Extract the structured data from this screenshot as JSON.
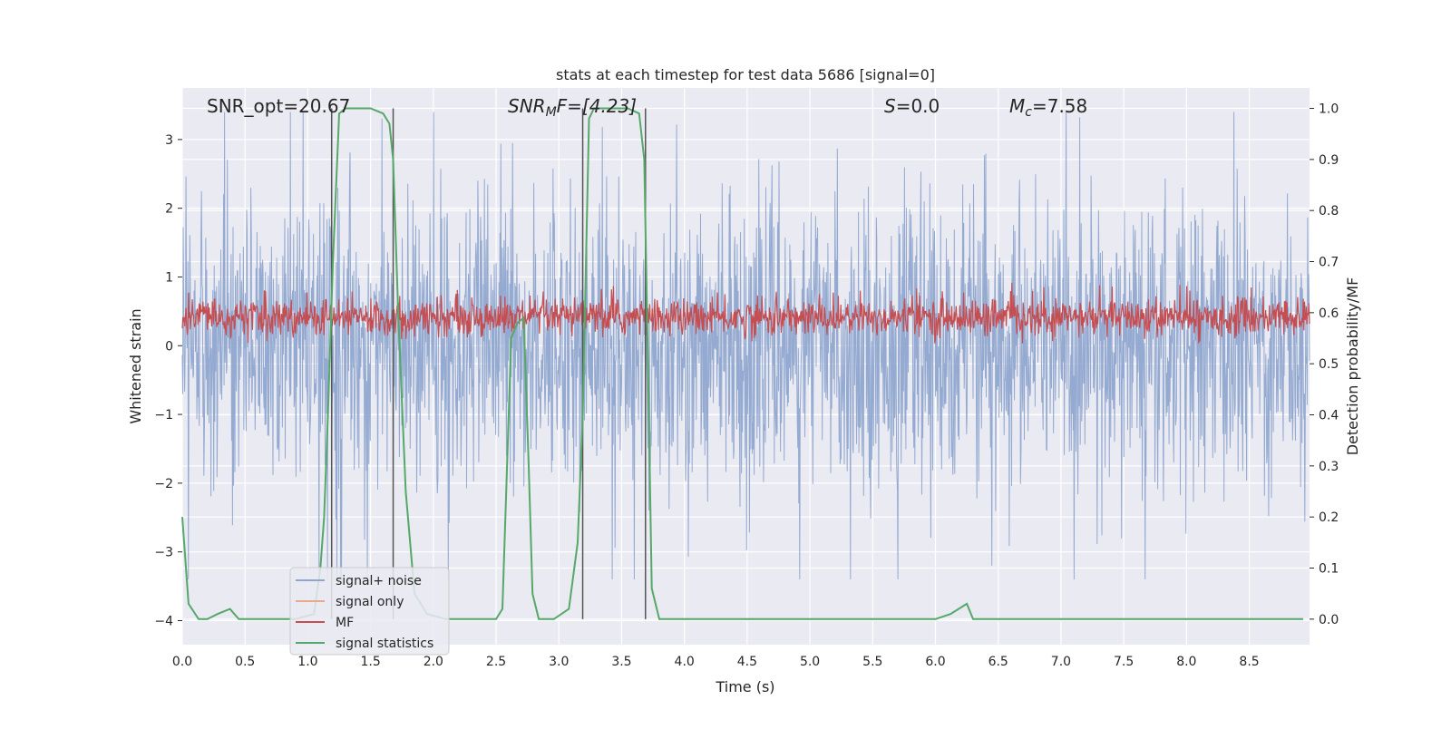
{
  "chart_data": {
    "type": "line",
    "title": "stats at each timestep for test data 5686 [signal=0]",
    "xlabel": "Time (s)",
    "ylabel": "Whitened strain",
    "ylabel_right": "Detection probability/MF",
    "xlim": [
      0.0,
      8.98
    ],
    "ylim": [
      -4.35,
      3.75
    ],
    "ylim_right": [
      -0.05,
      1.04
    ],
    "x_ticks": [
      "0.0",
      "0.5",
      "1.0",
      "1.5",
      "2.0",
      "2.5",
      "3.0",
      "3.5",
      "4.0",
      "4.5",
      "5.0",
      "5.5",
      "6.0",
      "6.5",
      "7.0",
      "7.5",
      "8.0",
      "8.5"
    ],
    "x_tick_values": [
      0.0,
      0.5,
      1.0,
      1.5,
      2.0,
      2.5,
      3.0,
      3.5,
      4.0,
      4.5,
      5.0,
      5.5,
      6.0,
      6.5,
      7.0,
      7.5,
      8.0,
      8.5
    ],
    "y_ticks": [
      "3",
      "2",
      "1",
      "0",
      "−1",
      "−2",
      "−3",
      "−4"
    ],
    "y_tick_values": [
      3,
      2,
      1,
      0,
      -1,
      -2,
      -3,
      -4
    ],
    "y2_ticks": [
      "1.0",
      "0.9",
      "0.8",
      "0.7",
      "0.6",
      "0.5",
      "0.4",
      "0.3",
      "0.2",
      "0.1",
      "0.0"
    ],
    "y2_tick_values": [
      1.0,
      0.9,
      0.8,
      0.7,
      0.6,
      0.5,
      0.4,
      0.3,
      0.2,
      0.1,
      0.0
    ],
    "annotations": {
      "snr_opt": "SNR_opt=20.67",
      "snr_mf_base": "SNR",
      "snr_mf_sub": "M",
      "snr_mf_rest": "F=[4.23]",
      "s_label": "S",
      "s_value": "=0.0",
      "mc_base": "M",
      "mc_sub": "c",
      "mc_value": "=7.58"
    },
    "legend": {
      "position": "lower-left",
      "entries": [
        {
          "label": "signal+ noise",
          "color": "#8fa6cf"
        },
        {
          "label": "signal only",
          "color": "#e9a98b"
        },
        {
          "label": "MF",
          "color": "#c44e52"
        },
        {
          "label": "signal statistics",
          "color": "#55a868"
        }
      ]
    },
    "series": [
      {
        "name": "signal+ noise",
        "color": "#8fa6cf",
        "axis": "left",
        "description": "dense whitened strain noise, roughly symmetric around 0 with peaks to about ±3.4"
      },
      {
        "name": "MF",
        "color": "#c44e52",
        "axis": "right",
        "description": "matched-filter output fluctuating between about 0.54 and 0.67"
      },
      {
        "name": "signal statistics",
        "color": "#55a868",
        "axis": "right",
        "x": [
          0.0,
          0.05,
          0.13,
          0.2,
          0.28,
          0.38,
          0.45,
          0.55,
          0.7,
          0.9,
          1.05,
          1.1,
          1.13,
          1.16,
          1.2,
          1.25,
          1.3,
          1.4,
          1.5,
          1.6,
          1.65,
          1.68,
          1.72,
          1.78,
          1.85,
          1.95,
          2.1,
          2.3,
          2.5,
          2.55,
          2.62,
          2.67,
          2.72,
          2.76,
          2.79,
          2.84,
          2.9,
          2.96,
          3.08,
          3.15,
          3.19,
          3.24,
          3.28,
          3.35,
          3.45,
          3.55,
          3.64,
          3.68,
          3.71,
          3.74,
          3.8,
          3.9,
          4.1,
          5.0,
          6.0,
          6.12,
          6.25,
          6.3,
          6.4,
          7.0,
          8.0,
          8.93
        ],
        "y": [
          0.2,
          0.03,
          0.0,
          0.0,
          0.01,
          0.02,
          0.0,
          0.0,
          0.0,
          0.0,
          0.01,
          0.1,
          0.2,
          0.4,
          0.7,
          0.99,
          1.0,
          1.0,
          1.0,
          0.99,
          0.97,
          0.9,
          0.6,
          0.25,
          0.05,
          0.01,
          0.0,
          0.0,
          0.0,
          0.02,
          0.55,
          0.58,
          0.59,
          0.3,
          0.05,
          0.0,
          0.0,
          0.0,
          0.02,
          0.15,
          0.4,
          0.98,
          1.0,
          1.0,
          1.0,
          1.0,
          0.99,
          0.9,
          0.5,
          0.06,
          0.0,
          0.0,
          0.0,
          0.0,
          0.0,
          0.01,
          0.03,
          0.0,
          0.0,
          0.0,
          0.0,
          0.0
        ]
      }
    ],
    "vertical_lines_x": [
      1.19,
      1.68,
      3.19,
      3.69
    ]
  }
}
